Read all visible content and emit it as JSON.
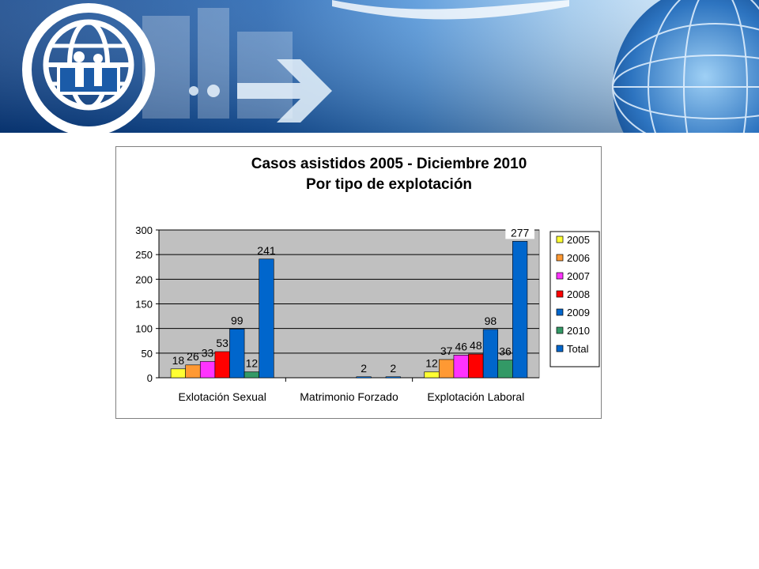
{
  "banner": {
    "colors": {
      "dark": "#0b3f86",
      "mid": "#2f78c6",
      "light": "#d7e9f8"
    },
    "icons": [
      "iom-logo-icon",
      "arrow-icon",
      "globe-icon"
    ]
  },
  "chart_data": {
    "type": "bar",
    "title": "Casos asistidos 2005 - Diciembre 2010",
    "subtitle": "Por tipo de explotación",
    "categories": [
      "Exlotación Sexual",
      "Matrimonio Forzado",
      "Explotación Laboral"
    ],
    "series": [
      {
        "name": "2005",
        "color": "#ffff33",
        "values": [
          18,
          0,
          12
        ],
        "labels": [
          "18",
          "",
          "12"
        ]
      },
      {
        "name": "2006",
        "color": "#ff9933",
        "values": [
          26,
          0,
          37
        ],
        "labels": [
          "26",
          "",
          "37"
        ]
      },
      {
        "name": "2007",
        "color": "#ff33ff",
        "values": [
          33,
          0,
          46
        ],
        "labels": [
          "33",
          "",
          "46"
        ]
      },
      {
        "name": "2008",
        "color": "#ff0000",
        "values": [
          53,
          0,
          48
        ],
        "labels": [
          "53",
          "",
          "48"
        ]
      },
      {
        "name": "2009",
        "color": "#0066cc",
        "values": [
          99,
          2,
          98
        ],
        "labels": [
          "99",
          "2",
          "98"
        ]
      },
      {
        "name": "2010",
        "color": "#339966",
        "values": [
          12,
          0,
          36
        ],
        "labels": [
          "12",
          "",
          "36"
        ]
      },
      {
        "name": "Total",
        "color": "#0066cc",
        "values": [
          241,
          2,
          277
        ],
        "labels": [
          "241",
          "2",
          "277"
        ]
      }
    ],
    "ylim": [
      0,
      300
    ],
    "yticks": [
      "0",
      "50",
      "100",
      "150",
      "200",
      "250",
      "300"
    ],
    "plot_background": "#c0c0c0",
    "grid": true,
    "legend_position": "right"
  }
}
